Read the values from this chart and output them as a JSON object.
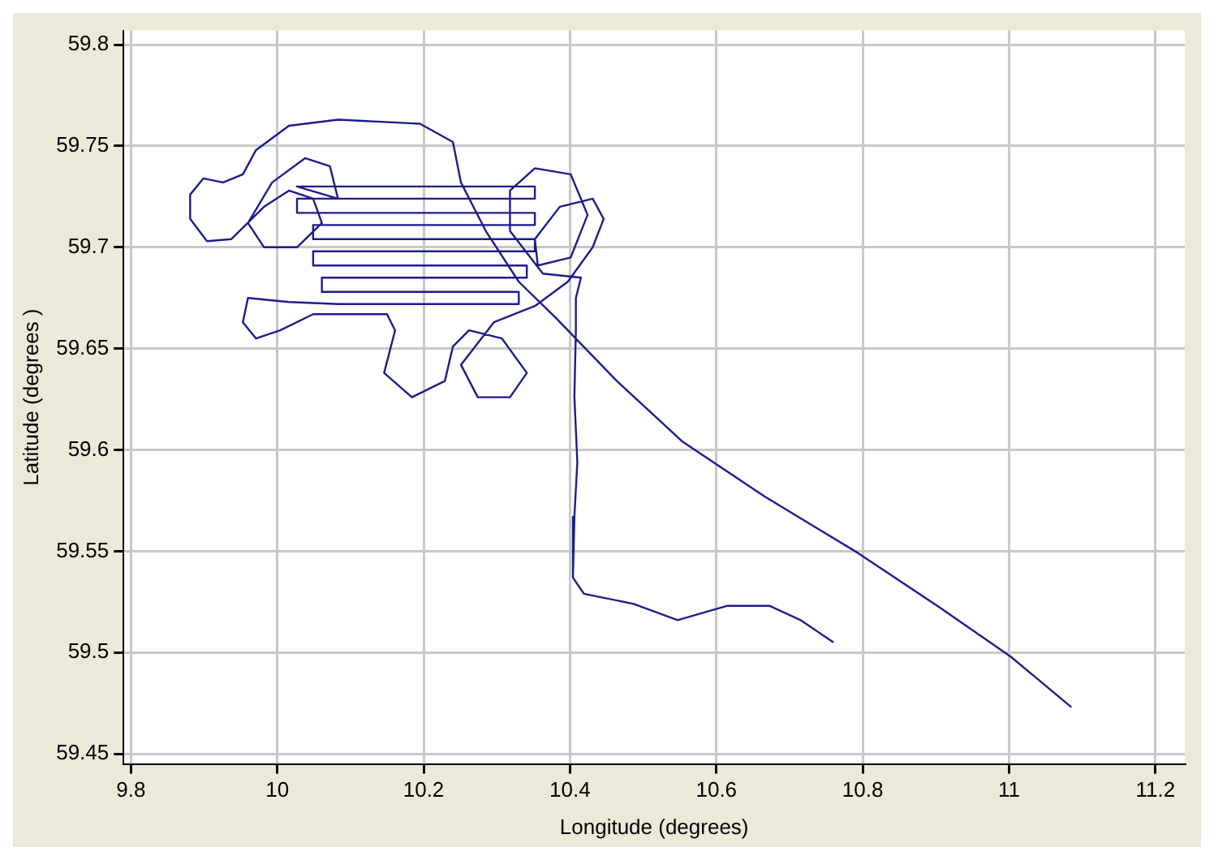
{
  "chart_data": {
    "type": "line",
    "xlabel": "Longitude (degrees)",
    "ylabel": "Latitude (degrees )",
    "xlim": [
      9.79,
      11.24
    ],
    "xticks": [
      {
        "value": 9.8,
        "label": "9.8"
      },
      {
        "value": 10,
        "label": "10"
      },
      {
        "value": 10.2,
        "label": "10.2"
      },
      {
        "value": 10.4,
        "label": "10.4"
      },
      {
        "value": 10.6,
        "label": "10.6"
      },
      {
        "value": 10.8,
        "label": "10.8"
      },
      {
        "value": 11,
        "label": "11"
      },
      {
        "value": 11.2,
        "label": "11.2"
      }
    ],
    "ylim": [
      59.445,
      59.807
    ],
    "yticks": [
      {
        "value": 59.45,
        "label": "59.45"
      },
      {
        "value": 59.5,
        "label": "59.5"
      },
      {
        "value": 59.55,
        "label": "59.55"
      },
      {
        "value": 59.6,
        "label": "59.6"
      },
      {
        "value": 59.65,
        "label": "59.65"
      },
      {
        "value": 59.7,
        "label": "59.7"
      },
      {
        "value": 59.75,
        "label": "59.75"
      },
      {
        "value": 59.8,
        "label": "59.8"
      }
    ],
    "grid": true,
    "legend": false,
    "marker": "none",
    "line_style": "solid",
    "series": [
      {
        "color": "#1c1c8c",
        "x": [
          11.085,
          11.002,
          10.906,
          10.794,
          10.666,
          10.554,
          10.464,
          10.381,
          10.33,
          10.285,
          10.251,
          10.24,
          10.195,
          10.083,
          10.016,
          9.971,
          9.953,
          9.926,
          9.899,
          9.881,
          9.881,
          9.904,
          9.937,
          9.982,
          10.016,
          10.049,
          10.061,
          10.027,
          9.982,
          9.96,
          9.993,
          10.038,
          10.072,
          10.083,
          10.027,
          10.352,
          10.352,
          10.027,
          10.027,
          10.352,
          10.352,
          10.049,
          10.049,
          10.352,
          10.352,
          10.049,
          10.049,
          10.341,
          10.341,
          10.061,
          10.061,
          10.33,
          10.33,
          10.083,
          10.016,
          9.96,
          9.953,
          9.971,
          10.004,
          10.049,
          10.15,
          10.161,
          10.146,
          10.184,
          10.229,
          10.24,
          10.262,
          10.307,
          10.341,
          10.318,
          10.274,
          10.251,
          10.296,
          10.352,
          10.397,
          10.431,
          10.446,
          10.431,
          10.386,
          10.352,
          10.356,
          10.401,
          10.424,
          10.401,
          10.352,
          10.318,
          10.318,
          10.363,
          10.415,
          10.408,
          10.408,
          10.406,
          10.41,
          10.406,
          10.404,
          10.419,
          10.487,
          10.547,
          10.614,
          10.673,
          10.715,
          10.76
        ],
        "values": [
          59.473,
          59.498,
          59.522,
          59.549,
          59.577,
          59.604,
          59.634,
          59.665,
          59.683,
          59.708,
          59.732,
          59.752,
          59.761,
          59.763,
          59.76,
          59.748,
          59.736,
          59.732,
          59.734,
          59.726,
          59.714,
          59.703,
          59.704,
          59.72,
          59.728,
          59.724,
          59.712,
          59.7,
          59.7,
          59.712,
          59.732,
          59.744,
          59.74,
          59.724,
          59.73,
          59.73,
          59.724,
          59.724,
          59.717,
          59.717,
          59.711,
          59.711,
          59.704,
          59.704,
          59.698,
          59.698,
          59.691,
          59.691,
          59.685,
          59.685,
          59.678,
          59.678,
          59.672,
          59.672,
          59.673,
          59.675,
          59.663,
          59.655,
          59.659,
          59.667,
          59.667,
          59.659,
          59.638,
          59.626,
          59.634,
          59.651,
          59.659,
          59.655,
          59.638,
          59.626,
          59.626,
          59.642,
          59.663,
          59.671,
          59.683,
          59.7,
          59.714,
          59.724,
          59.72,
          59.704,
          59.691,
          59.695,
          59.716,
          59.736,
          59.739,
          59.728,
          59.708,
          59.687,
          59.685,
          59.675,
          59.659,
          59.626,
          59.594,
          59.567,
          59.537,
          59.529,
          59.524,
          59.516,
          59.523,
          59.523,
          59.516,
          59.505
        ]
      }
    ]
  }
}
